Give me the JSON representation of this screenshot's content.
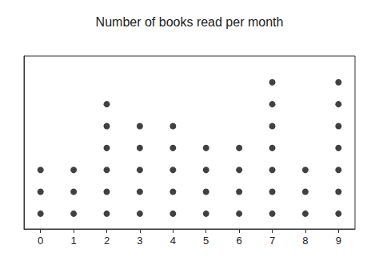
{
  "chart_data": {
    "type": "dot",
    "title": "Number of books read per month",
    "x": [
      0,
      1,
      2,
      3,
      4,
      5,
      6,
      7,
      8,
      9
    ],
    "values": [
      3,
      3,
      6,
      5,
      5,
      4,
      4,
      7,
      3,
      7
    ],
    "color": "#111111",
    "xlim": [
      -0.5,
      9.5
    ],
    "xticks": [
      0,
      1,
      2,
      3,
      4,
      5,
      6,
      7,
      8,
      9
    ],
    "ylim": [
      0.3,
      8.2
    ],
    "grid": false,
    "tick_labels": "x"
  }
}
